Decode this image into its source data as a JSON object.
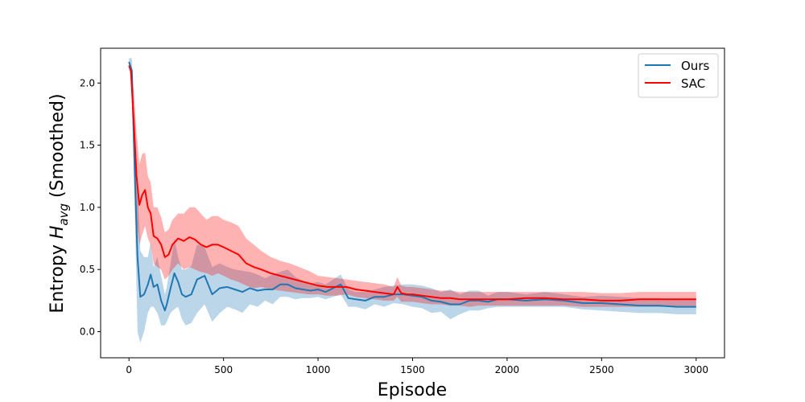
{
  "chart_data": {
    "type": "line",
    "title": "",
    "xlabel": "Episode",
    "ylabel_prefix": "Entropy ",
    "ylabel_symbol": "H",
    "ylabel_subscript": "avg",
    "ylabel_suffix": " (Smoothed)",
    "xlim": [
      -150,
      3150
    ],
    "ylim": [
      -0.21,
      2.28
    ],
    "xticks": [
      0,
      500,
      1000,
      1500,
      2000,
      2500,
      3000
    ],
    "xtick_labels": [
      "0",
      "500",
      "1000",
      "1500",
      "2000",
      "2500",
      "3000"
    ],
    "yticks": [
      0.0,
      0.5,
      1.0,
      1.5,
      2.0
    ],
    "ytick_labels": [
      "0.0",
      "0.5",
      "1.0",
      "1.5",
      "2.0"
    ],
    "grid": false,
    "legend_position": "top-right",
    "series": [
      {
        "name": "Ours",
        "color": "#1f77b4",
        "band_color": "#1f77b4",
        "band_opacity": 0.3,
        "x": [
          0,
          15,
          30,
          45,
          60,
          80,
          100,
          115,
          130,
          150,
          170,
          190,
          200,
          220,
          240,
          260,
          280,
          300,
          330,
          360,
          400,
          440,
          480,
          520,
          560,
          600,
          640,
          680,
          720,
          760,
          800,
          840,
          880,
          920,
          960,
          1000,
          1040,
          1080,
          1120,
          1160,
          1200,
          1250,
          1300,
          1350,
          1400,
          1450,
          1500,
          1550,
          1600,
          1650,
          1700,
          1750,
          1800,
          1850,
          1900,
          1950,
          2000,
          2100,
          2200,
          2300,
          2400,
          2500,
          2600,
          2700,
          2800,
          2900,
          3000
        ],
        "y": [
          2.17,
          2.1,
          1.3,
          0.6,
          0.28,
          0.3,
          0.38,
          0.46,
          0.36,
          0.38,
          0.25,
          0.17,
          0.22,
          0.35,
          0.47,
          0.4,
          0.3,
          0.28,
          0.3,
          0.42,
          0.45,
          0.3,
          0.35,
          0.36,
          0.34,
          0.32,
          0.35,
          0.33,
          0.34,
          0.34,
          0.38,
          0.38,
          0.35,
          0.34,
          0.33,
          0.34,
          0.32,
          0.35,
          0.38,
          0.27,
          0.26,
          0.25,
          0.28,
          0.28,
          0.3,
          0.3,
          0.29,
          0.28,
          0.25,
          0.24,
          0.22,
          0.22,
          0.25,
          0.25,
          0.24,
          0.26,
          0.26,
          0.25,
          0.26,
          0.25,
          0.23,
          0.23,
          0.22,
          0.21,
          0.21,
          0.2,
          0.2
        ],
        "y_lower": [
          2.14,
          2.0,
          1.0,
          0.0,
          -0.09,
          0.0,
          0.15,
          0.2,
          0.2,
          0.15,
          0.05,
          0.05,
          0.08,
          0.15,
          0.18,
          0.2,
          0.1,
          0.05,
          0.07,
          0.15,
          0.22,
          0.08,
          0.15,
          0.2,
          0.18,
          0.15,
          0.22,
          0.2,
          0.25,
          0.22,
          0.28,
          0.28,
          0.26,
          0.27,
          0.27,
          0.28,
          0.26,
          0.28,
          0.3,
          0.2,
          0.2,
          0.18,
          0.22,
          0.2,
          0.23,
          0.22,
          0.2,
          0.19,
          0.15,
          0.16,
          0.1,
          0.14,
          0.17,
          0.17,
          0.19,
          0.2,
          0.2,
          0.2,
          0.2,
          0.2,
          0.18,
          0.17,
          0.16,
          0.15,
          0.15,
          0.14,
          0.14
        ],
        "y_upper": [
          2.2,
          2.2,
          1.6,
          1.2,
          0.65,
          0.6,
          0.6,
          0.72,
          0.52,
          0.6,
          0.45,
          0.3,
          0.36,
          0.55,
          0.75,
          0.6,
          0.5,
          0.5,
          0.53,
          0.7,
          0.68,
          0.52,
          0.55,
          0.52,
          0.5,
          0.49,
          0.48,
          0.46,
          0.43,
          0.46,
          0.48,
          0.5,
          0.44,
          0.41,
          0.39,
          0.4,
          0.38,
          0.42,
          0.46,
          0.34,
          0.32,
          0.32,
          0.34,
          0.36,
          0.37,
          0.38,
          0.38,
          0.37,
          0.35,
          0.32,
          0.34,
          0.3,
          0.33,
          0.33,
          0.29,
          0.32,
          0.32,
          0.3,
          0.32,
          0.3,
          0.28,
          0.29,
          0.28,
          0.27,
          0.27,
          0.26,
          0.26
        ]
      },
      {
        "name": "SAC",
        "color": "#ff0000",
        "band_color": "#ff0000",
        "band_opacity": 0.3,
        "x": [
          0,
          10,
          25,
          40,
          55,
          70,
          85,
          100,
          115,
          130,
          150,
          170,
          190,
          210,
          230,
          260,
          290,
          320,
          350,
          380,
          410,
          440,
          470,
          500,
          540,
          580,
          620,
          660,
          700,
          750,
          800,
          850,
          900,
          950,
          1000,
          1050,
          1100,
          1150,
          1200,
          1250,
          1300,
          1350,
          1400,
          1420,
          1440,
          1470,
          1500,
          1550,
          1600,
          1650,
          1700,
          1750,
          1800,
          1850,
          1900,
          1950,
          2000,
          2100,
          2200,
          2300,
          2400,
          2500,
          2600,
          2700,
          2800,
          2900,
          3000
        ],
        "y": [
          2.14,
          2.1,
          1.7,
          1.25,
          1.02,
          1.1,
          1.14,
          1.0,
          0.95,
          0.77,
          0.75,
          0.7,
          0.6,
          0.62,
          0.7,
          0.75,
          0.73,
          0.76,
          0.74,
          0.7,
          0.68,
          0.7,
          0.7,
          0.68,
          0.65,
          0.62,
          0.55,
          0.52,
          0.5,
          0.47,
          0.45,
          0.43,
          0.41,
          0.39,
          0.37,
          0.36,
          0.36,
          0.36,
          0.34,
          0.33,
          0.32,
          0.31,
          0.3,
          0.36,
          0.31,
          0.3,
          0.3,
          0.29,
          0.28,
          0.27,
          0.27,
          0.26,
          0.26,
          0.26,
          0.26,
          0.26,
          0.26,
          0.27,
          0.27,
          0.26,
          0.26,
          0.25,
          0.25,
          0.26,
          0.26,
          0.26,
          0.26
        ],
        "y_lower": [
          2.12,
          2.05,
          1.4,
          0.9,
          0.7,
          0.78,
          0.85,
          0.75,
          0.7,
          0.55,
          0.52,
          0.5,
          0.42,
          0.45,
          0.5,
          0.55,
          0.5,
          0.52,
          0.5,
          0.48,
          0.47,
          0.45,
          0.47,
          0.45,
          0.42,
          0.4,
          0.37,
          0.35,
          0.36,
          0.34,
          0.33,
          0.32,
          0.31,
          0.3,
          0.3,
          0.29,
          0.29,
          0.3,
          0.28,
          0.27,
          0.26,
          0.25,
          0.25,
          0.28,
          0.24,
          0.24,
          0.24,
          0.23,
          0.22,
          0.22,
          0.21,
          0.21,
          0.2,
          0.21,
          0.21,
          0.21,
          0.21,
          0.21,
          0.21,
          0.21,
          0.2,
          0.2,
          0.2,
          0.2,
          0.2,
          0.2,
          0.2
        ],
        "y_upper": [
          2.17,
          2.15,
          1.95,
          1.6,
          1.35,
          1.43,
          1.44,
          1.25,
          1.2,
          1.0,
          1.0,
          0.92,
          0.8,
          0.82,
          0.9,
          0.95,
          0.95,
          1.0,
          1.0,
          0.95,
          0.9,
          0.93,
          0.93,
          0.9,
          0.88,
          0.85,
          0.75,
          0.7,
          0.65,
          0.6,
          0.57,
          0.55,
          0.52,
          0.49,
          0.45,
          0.44,
          0.43,
          0.42,
          0.41,
          0.4,
          0.39,
          0.38,
          0.36,
          0.44,
          0.37,
          0.36,
          0.36,
          0.35,
          0.34,
          0.33,
          0.33,
          0.32,
          0.32,
          0.32,
          0.32,
          0.32,
          0.32,
          0.32,
          0.32,
          0.32,
          0.32,
          0.31,
          0.31,
          0.32,
          0.32,
          0.32,
          0.32
        ]
      }
    ]
  }
}
